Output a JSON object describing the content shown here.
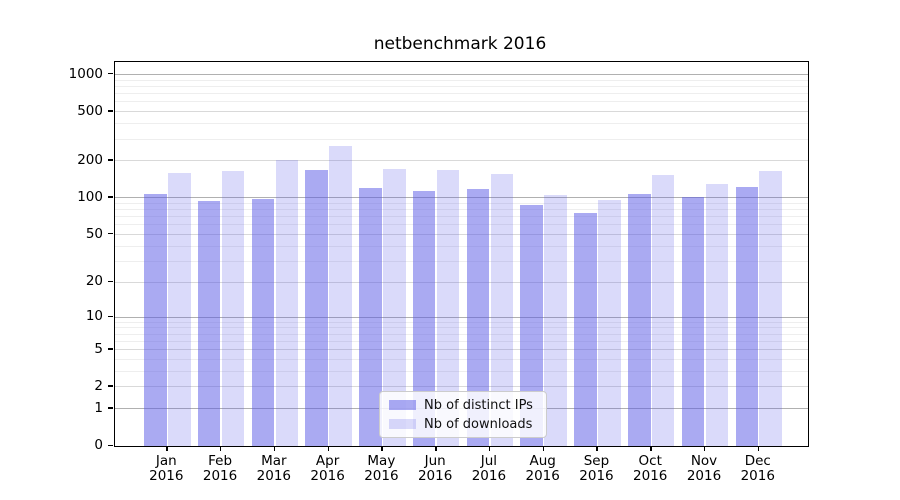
{
  "title": "netbenchmark 2016",
  "chart_data": {
    "type": "bar",
    "title": "netbenchmark 2016",
    "categories": [
      "Jan",
      "Feb",
      "Mar",
      "Apr",
      "May",
      "Jun",
      "Jul",
      "Aug",
      "Sep",
      "Oct",
      "Nov",
      "Dec"
    ],
    "year_label": "2016",
    "series": [
      {
        "name": "Nb of distinct IPs",
        "color": "rgba(85,85,230,0.5)",
        "values": [
          107,
          93,
          97,
          167,
          120,
          113,
          117,
          87,
          75,
          107,
          100,
          121
        ]
      },
      {
        "name": "Nb of downloads",
        "color": "rgba(85,85,230,0.22)",
        "values": [
          159,
          164,
          200,
          261,
          171,
          167,
          154,
          105,
          95,
          151,
          128,
          164
        ]
      }
    ],
    "xlabel": "",
    "ylabel": "",
    "yscale": "log1p",
    "ylim": [
      0,
      1250
    ],
    "y_ticks": [
      0,
      1,
      2,
      5,
      10,
      20,
      50,
      100,
      200,
      500,
      1000
    ],
    "y_tick_labels": [
      "0",
      "1",
      "2",
      "5",
      "10",
      "20",
      "50",
      "100",
      "200",
      "500",
      "1000"
    ],
    "y_minor_ticks": [
      3,
      4,
      6,
      7,
      8,
      9,
      30,
      40,
      60,
      70,
      80,
      90,
      300,
      400,
      600,
      700,
      800,
      900
    ],
    "grid": "major and minor horizontal gridlines",
    "legend_position": "bottom center inside plot"
  },
  "colors": {
    "background": "#ffffff",
    "spine": "#000000",
    "grid_decade": "#b0b0b0",
    "grid_major": "#d9d9d9",
    "grid_minor": "#eeeeee",
    "bar_distinct_ips": "rgba(85,85,230,0.5)",
    "bar_downloads": "rgba(85,85,230,0.22)",
    "legend_border": "#cccccc"
  }
}
